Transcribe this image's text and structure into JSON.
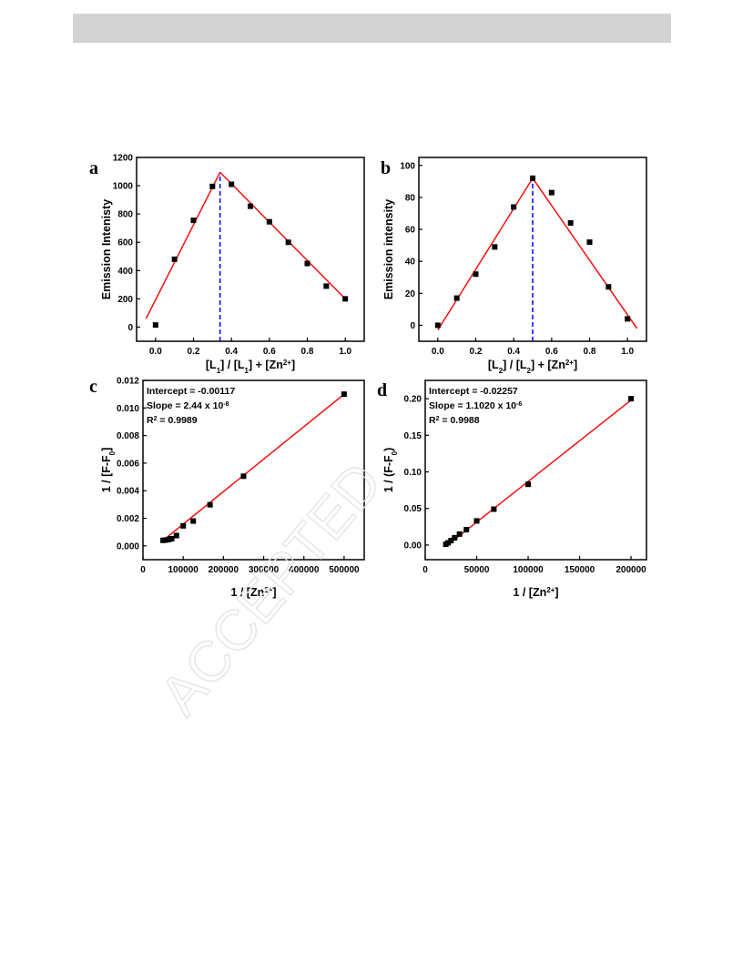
{
  "watermark": "ACCEPTED",
  "colors": {
    "fit_line": "#ff0000",
    "guide_line": "#0000ff",
    "markers": "#000000"
  },
  "panels": {
    "a": {
      "letter": "a"
    },
    "b": {
      "letter": "b"
    },
    "c": {
      "letter": "c"
    },
    "d": {
      "letter": "d"
    }
  },
  "chart_data": [
    {
      "id": "a",
      "type": "scatter",
      "xlabel": "[L{sub:1}] / [L{sub:1}] + [Zn{sup:2+}]",
      "ylabel": "Emission Intenisty",
      "xlim": [
        -0.1,
        1.1
      ],
      "ylim": [
        -100,
        1200
      ],
      "xticks": [
        0.0,
        0.2,
        0.4,
        0.6,
        0.8,
        1.0
      ],
      "xtick_labels": [
        "0.0",
        "0.2",
        "0.4",
        "0.6",
        "0.8",
        "1.0"
      ],
      "yticks": [
        0,
        200,
        400,
        600,
        800,
        1000,
        1200
      ],
      "ytick_labels": [
        "0",
        "200",
        "400",
        "600",
        "800",
        "1000",
        "1200"
      ],
      "series": [
        {
          "x": [
            0.0,
            0.1,
            0.2,
            0.3,
            0.4,
            0.5,
            0.6,
            0.7,
            0.8,
            0.9,
            1.0
          ],
          "y": [
            15,
            480,
            755,
            995,
            1010,
            855,
            745,
            600,
            450,
            290,
            200
          ]
        }
      ],
      "fit_lines": [
        {
          "x": [
            -0.05,
            0.34
          ],
          "y": [
            60,
            1095
          ]
        },
        {
          "x": [
            0.34,
            1.0
          ],
          "y": [
            1095,
            200
          ]
        }
      ],
      "guide_line": {
        "x": 0.34,
        "y": [
          -100,
          1095
        ]
      },
      "annotations": [],
      "grid": false
    },
    {
      "id": "b",
      "type": "scatter",
      "xlabel": "[L{sub:2}] / [L{sub:2}] + [Zn{sup:2+}]",
      "ylabel": "Emission intensity",
      "xlim": [
        -0.1,
        1.1
      ],
      "ylim": [
        -10,
        105
      ],
      "xticks": [
        0.0,
        0.2,
        0.4,
        0.6,
        0.8,
        1.0
      ],
      "xtick_labels": [
        "0.0",
        "0.2",
        "0.4",
        "0.6",
        "0.8",
        "1.0"
      ],
      "yticks": [
        0,
        20,
        40,
        60,
        80,
        100
      ],
      "ytick_labels": [
        "0",
        "20",
        "40",
        "60",
        "80",
        "100"
      ],
      "series": [
        {
          "x": [
            0.0,
            0.1,
            0.2,
            0.3,
            0.4,
            0.5,
            0.6,
            0.7,
            0.8,
            0.9,
            1.0
          ],
          "y": [
            0,
            17,
            32,
            49,
            74,
            92,
            83,
            64,
            52,
            24,
            4
          ]
        }
      ],
      "fit_lines": [
        {
          "x": [
            0.0,
            0.5
          ],
          "y": [
            -3,
            92
          ]
        },
        {
          "x": [
            0.5,
            1.05
          ],
          "y": [
            92,
            -2
          ]
        }
      ],
      "guide_line": {
        "x": 0.5,
        "y": [
          -10,
          92
        ]
      },
      "annotations": [],
      "grid": false
    },
    {
      "id": "c",
      "type": "scatter",
      "xlabel": "1 / [Zn{sup:2+}]",
      "ylabel": "1 / [F-F{sub:0}]",
      "xlim": [
        0,
        550000
      ],
      "ylim": [
        -0.001,
        0.012
      ],
      "xticks": [
        0,
        100000,
        200000,
        300000,
        400000,
        500000
      ],
      "xtick_labels": [
        "0",
        "100000",
        "200000",
        "300000",
        "400000",
        "500000"
      ],
      "yticks": [
        0.0,
        0.002,
        0.004,
        0.006,
        0.008,
        0.01,
        0.012
      ],
      "ytick_labels": [
        "0.000",
        "0.002",
        "0.004",
        "0.006",
        "0.008",
        "0.010",
        "0.012"
      ],
      "series": [
        {
          "x": [
            50000,
            55600,
            62500,
            66700,
            71400,
            83300,
            100000,
            125000,
            166700,
            250000,
            500000
          ],
          "y": [
            0.0004,
            0.00042,
            0.00045,
            0.0005,
            0.00052,
            0.00075,
            0.00145,
            0.0018,
            0.00298,
            0.00505,
            0.011
          ]
        }
      ],
      "fit_lines": [
        {
          "x": [
            50000,
            500000
          ],
          "y": [
            0.0004,
            0.011
          ]
        }
      ],
      "guide_line": null,
      "annotations": [
        "Intercept = -0.00117",
        "Slope = 2.44 x 10{sup:-8}",
        "R{sup:2} = 0.9989"
      ],
      "grid": false
    },
    {
      "id": "d",
      "type": "scatter",
      "xlabel": "1 / [Zn{sup:2+}]",
      "ylabel": "1 / (F-F{sub:0})",
      "xlim": [
        0,
        215000
      ],
      "ylim": [
        -0.02,
        0.225
      ],
      "xticks": [
        0,
        50000,
        100000,
        150000,
        200000
      ],
      "xtick_labels": [
        "0",
        "50000",
        "100000",
        "150000",
        "200000"
      ],
      "yticks": [
        0.0,
        0.05,
        0.1,
        0.15,
        0.2
      ],
      "ytick_labels": [
        "0.00",
        "0.05",
        "0.10",
        "0.15",
        "0.20"
      ],
      "series": [
        {
          "x": [
            20000,
            22200,
            25000,
            28600,
            33300,
            40000,
            50000,
            66700,
            100000,
            200000
          ],
          "y": [
            0.001,
            0.003,
            0.006,
            0.01,
            0.015,
            0.021,
            0.033,
            0.049,
            0.083,
            0.2
          ]
        }
      ],
      "fit_lines": [
        {
          "x": [
            20000,
            200000
          ],
          "y": [
            -0.002,
            0.198
          ]
        }
      ],
      "guide_line": null,
      "annotations": [
        "Intercept = -0.02257",
        "Slope = 1.1020 x 10{sup:-6}",
        "R{sup:2} = 0.9988"
      ],
      "grid": false
    }
  ]
}
